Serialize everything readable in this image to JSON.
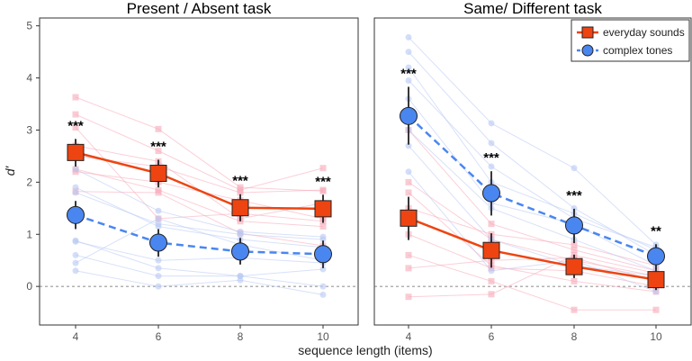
{
  "chart_data": [
    {
      "type": "line",
      "title": "Present / Absent task",
      "xlabel": "sequence length (items)",
      "ylabel": "d'",
      "x": [
        4,
        6,
        8,
        10
      ],
      "ylim": [
        -0.74,
        5.15
      ],
      "yticks": [
        0,
        1,
        2,
        3,
        4,
        5
      ],
      "reference_line_y": 0,
      "grid": false,
      "series": [
        {
          "name": "everyday sounds",
          "color": "#EE4411",
          "marker": "square",
          "dash": false,
          "values": [
            2.57,
            2.17,
            1.51,
            1.49
          ],
          "err_low": [
            2.3,
            1.9,
            1.25,
            1.22
          ],
          "err_high": [
            2.83,
            2.43,
            1.77,
            1.76
          ],
          "individuals": [
            [
              3.63,
              3.02,
              1.9,
              1.83
            ],
            [
              3.3,
              2.6,
              1.85,
              2.27
            ],
            [
              2.7,
              2.4,
              1.3,
              1.6
            ],
            [
              2.25,
              1.85,
              1.25,
              1.15
            ],
            [
              2.2,
              2.0,
              1.65,
              1.3
            ],
            [
              1.82,
              1.8,
              1.02,
              0.78
            ],
            [
              2.5,
              2.3,
              1.8,
              1.85
            ],
            [
              3.05,
              1.3,
              1.4,
              1.25
            ]
          ]
        },
        {
          "name": "complex tones",
          "color": "#4A86F0",
          "marker": "circle",
          "dash": true,
          "values": [
            1.37,
            0.84,
            0.67,
            0.62
          ],
          "err_low": [
            1.1,
            0.57,
            0.42,
            0.35
          ],
          "err_high": [
            1.64,
            1.1,
            0.93,
            0.88
          ],
          "individuals": [
            [
              2.25,
              1.45,
              1.05,
              0.95
            ],
            [
              1.9,
              1.15,
              0.9,
              0.75
            ],
            [
              0.86,
              0.5,
              0.55,
              0.45
            ],
            [
              0.88,
              0.35,
              0.2,
              0.33
            ],
            [
              0.6,
              0.2,
              0.2,
              0.0
            ],
            [
              0.3,
              0.0,
              0.12,
              -0.16
            ],
            [
              1.8,
              1.2,
              1.0,
              0.9
            ],
            [
              0.45,
              1.3,
              0.8,
              0.5
            ]
          ]
        }
      ],
      "annotations": [
        "***",
        "***",
        "***",
        "***"
      ]
    },
    {
      "type": "line",
      "title": "Same/ Different task",
      "xlabel": "sequence length (items)",
      "ylabel": "d'",
      "x": [
        4,
        6,
        8,
        10
      ],
      "ylim": [
        -0.74,
        5.15
      ],
      "yticks": [
        0,
        1,
        2,
        3,
        4,
        5
      ],
      "reference_line_y": 0,
      "grid": false,
      "legend": {
        "placement": "top-right",
        "entries": [
          "everyday sounds",
          "complex tones"
        ]
      },
      "series": [
        {
          "name": "everyday sounds",
          "color": "#EE4411",
          "marker": "square",
          "dash": false,
          "values": [
            1.31,
            0.69,
            0.38,
            0.13
          ],
          "err_low": [
            0.89,
            0.36,
            0.16,
            -0.07
          ],
          "err_high": [
            1.72,
            1.02,
            0.61,
            0.34
          ],
          "individuals": [
            [
              3.0,
              1.2,
              0.7,
              0.3
            ],
            [
              2.0,
              0.9,
              0.5,
              0.2
            ],
            [
              1.8,
              0.4,
              0.1,
              -0.1
            ],
            [
              1.0,
              0.35,
              0.3,
              0.0
            ],
            [
              0.6,
              0.1,
              -0.45,
              -0.45
            ],
            [
              0.35,
              0.5,
              0.55,
              0.1
            ],
            [
              -0.2,
              -0.15,
              0.6,
              0.25
            ],
            [
              1.5,
              1.0,
              0.8,
              0.4
            ]
          ]
        },
        {
          "name": "complex tones",
          "color": "#4A86F0",
          "marker": "circle",
          "dash": true,
          "values": [
            3.27,
            1.79,
            1.17,
            0.58
          ],
          "err_low": [
            2.72,
            1.36,
            0.83,
            0.33
          ],
          "err_high": [
            3.83,
            2.21,
            1.49,
            0.81
          ],
          "individuals": [
            [
              4.78,
              3.13,
              2.27,
              0.8
            ],
            [
              4.5,
              2.75,
              1.5,
              0.6
            ],
            [
              4.2,
              2.0,
              1.4,
              0.7
            ],
            [
              3.6,
              1.6,
              1.2,
              0.4
            ],
            [
              3.0,
              1.5,
              0.9,
              0.3
            ],
            [
              2.7,
              0.9,
              0.4,
              0.2
            ],
            [
              2.2,
              0.3,
              0.5,
              -0.1
            ],
            [
              3.95,
              2.3,
              1.3,
              0.75
            ]
          ]
        }
      ],
      "annotations": [
        "***",
        "***",
        "***",
        "**"
      ]
    }
  ]
}
